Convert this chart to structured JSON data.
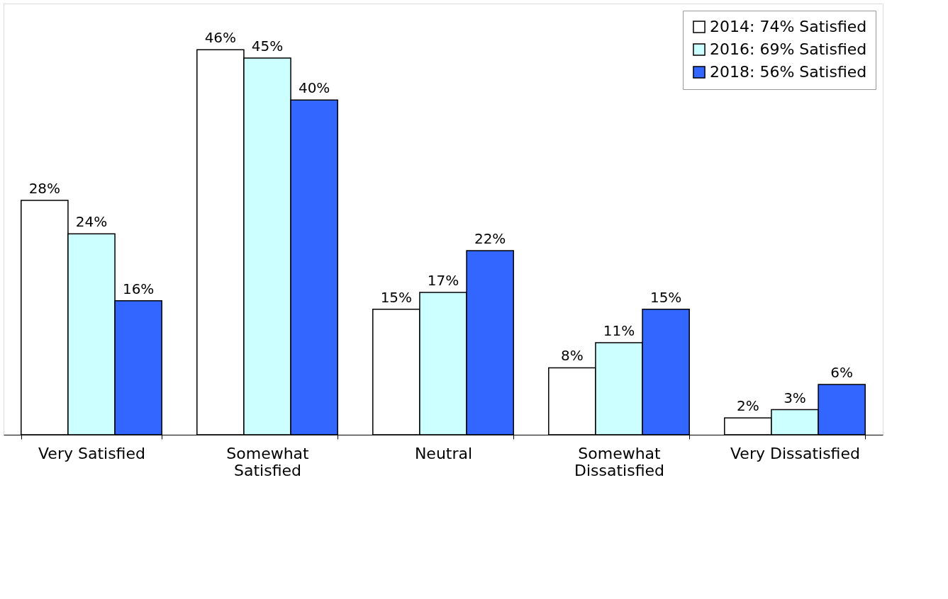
{
  "chart_data": {
    "type": "bar",
    "categories": [
      "Very Satisfied",
      "Somewhat Satisfied",
      "Neutral",
      "Somewhat Dissatisfied",
      "Very Dissatisfied"
    ],
    "series": [
      {
        "name": "2014: 74% Satisfied",
        "color": "#ffffff",
        "values": [
          28,
          46,
          15,
          8,
          2
        ],
        "value_labels": [
          "28%",
          "46%",
          "15%",
          "8%",
          "2%"
        ]
      },
      {
        "name": "2016: 69% Satisfied",
        "color": "#ccffff",
        "values": [
          24,
          45,
          17,
          11,
          3
        ],
        "value_labels": [
          "24%",
          "45%",
          "17%",
          "11%",
          "3%"
        ]
      },
      {
        "name": "2018: 56% Satisfied",
        "color": "#3366ff",
        "values": [
          16,
          40,
          22,
          15,
          6
        ],
        "value_labels": [
          "16%",
          "40%",
          "22%",
          "15%",
          "6%"
        ]
      }
    ],
    "legend": "top right",
    "grid": false
  }
}
